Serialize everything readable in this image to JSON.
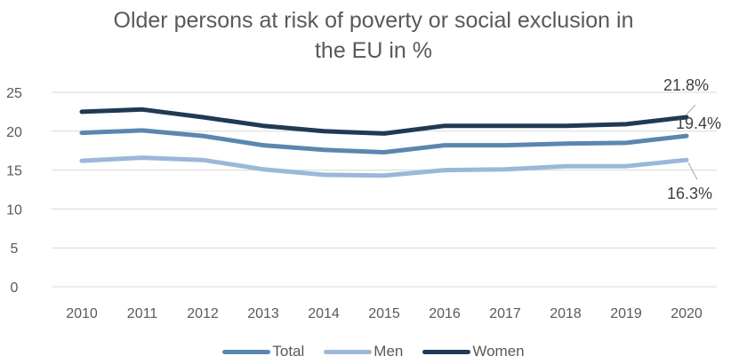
{
  "chart_data": {
    "type": "line",
    "title": "Older persons at risk of poverty or social exclusion in the EU in %",
    "title_lines": [
      "Older persons at risk of poverty or social exclusion in",
      "the EU in %"
    ],
    "categories": [
      "2010",
      "2011",
      "2012",
      "2013",
      "2014",
      "2015",
      "2016",
      "2017",
      "2018",
      "2019",
      "2020"
    ],
    "ylim": [
      0,
      25
    ],
    "yticks": [
      "0",
      "5",
      "10",
      "15",
      "20",
      "25"
    ],
    "grid": true,
    "legend_position": "bottom",
    "series": [
      {
        "name": "Total",
        "color": "#5b86b0",
        "values": [
          19.8,
          20.1,
          19.4,
          18.2,
          17.6,
          17.3,
          18.2,
          18.2,
          18.4,
          18.5,
          19.4
        ]
      },
      {
        "name": "Men",
        "color": "#9ab8d8",
        "values": [
          16.2,
          16.6,
          16.3,
          15.1,
          14.4,
          14.3,
          15.0,
          15.1,
          15.5,
          15.5,
          16.3
        ]
      },
      {
        "name": "Women",
        "color": "#203a55",
        "values": [
          22.5,
          22.8,
          21.8,
          20.7,
          20.0,
          19.7,
          20.7,
          20.7,
          20.7,
          20.9,
          21.8
        ]
      }
    ],
    "annotations": [
      {
        "series": "Women",
        "text": "21.8%"
      },
      {
        "series": "Total",
        "text": "19.4%"
      },
      {
        "series": "Men",
        "text": "16.3%"
      }
    ]
  }
}
